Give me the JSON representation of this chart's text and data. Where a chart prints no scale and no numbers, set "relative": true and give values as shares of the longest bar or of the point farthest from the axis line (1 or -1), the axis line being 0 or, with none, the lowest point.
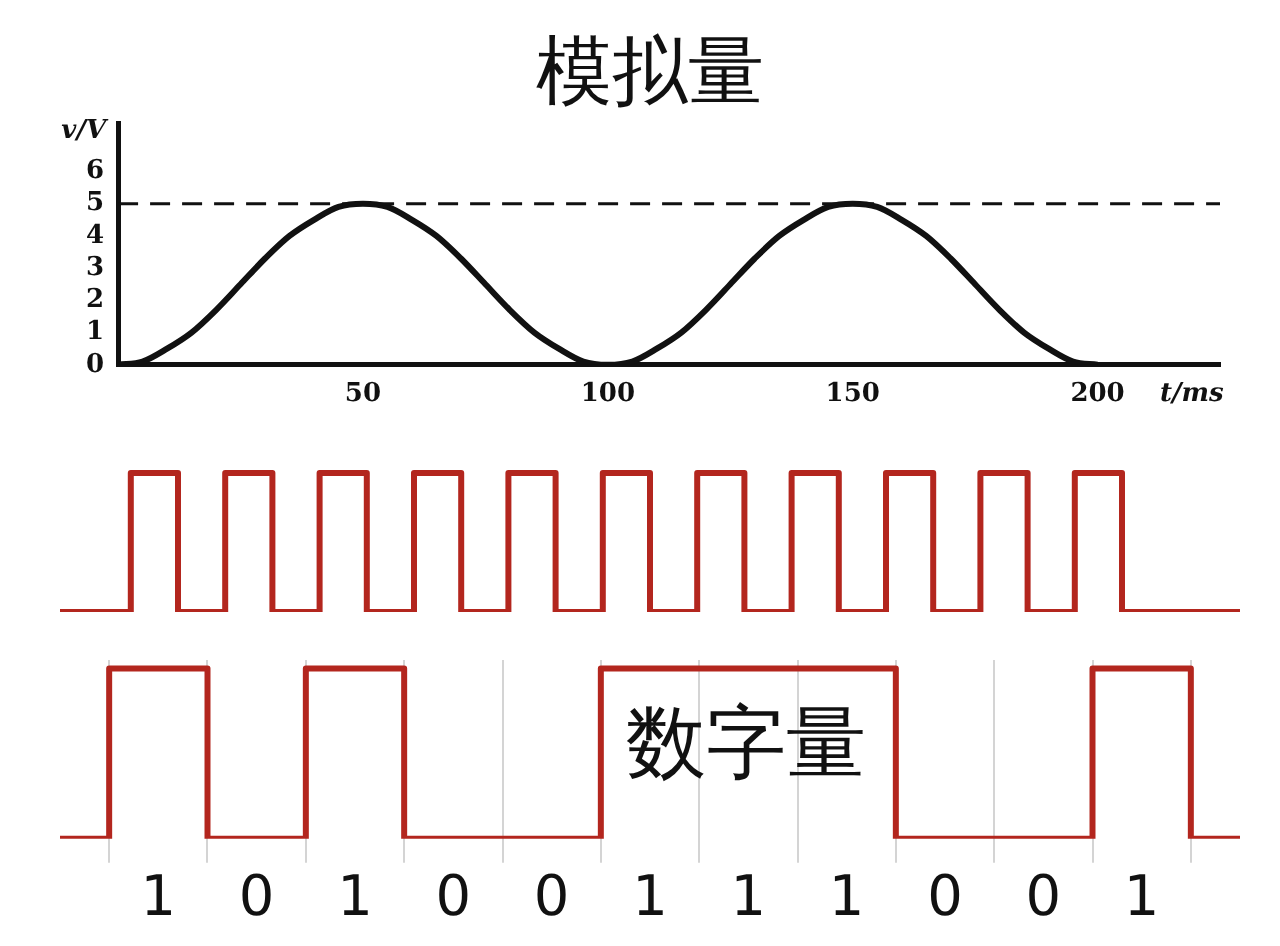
{
  "chart_data": [
    {
      "type": "line",
      "title": "模拟量",
      "xlabel": "t/ms",
      "ylabel": "v/V",
      "x": [
        0,
        5,
        10,
        15,
        20,
        25,
        30,
        35,
        40,
        45,
        50,
        55,
        60,
        65,
        70,
        75,
        80,
        85,
        90,
        95,
        100,
        105,
        110,
        115,
        120,
        125,
        130,
        135,
        140,
        145,
        150,
        155,
        160,
        165,
        170,
        175,
        180,
        185,
        190,
        195,
        200
      ],
      "series": [
        {
          "color": "#111111",
          "values": [
            0,
            0.1,
            0.5,
            1.0,
            1.7,
            2.5,
            3.3,
            4.0,
            4.5,
            4.9,
            5,
            4.9,
            4.5,
            4.0,
            3.3,
            2.5,
            1.7,
            1.0,
            0.5,
            0.1,
            0,
            0.1,
            0.5,
            1.0,
            1.7,
            2.5,
            3.3,
            4.0,
            4.5,
            4.9,
            5,
            4.9,
            4.5,
            4.0,
            3.3,
            2.5,
            1.7,
            1.0,
            0.5,
            0.1,
            0
          ]
        }
      ],
      "xlim": [
        0,
        225
      ],
      "ylim": [
        0,
        7.5
      ],
      "xticks": [
        50,
        100,
        150,
        200
      ],
      "yticks": [
        0,
        1,
        2,
        3,
        4,
        5,
        6
      ],
      "ref_lines": [
        {
          "axis": "y",
          "value": 5,
          "color": "#111111",
          "line_style": "dashed"
        }
      ],
      "marker": "none"
    },
    {
      "type": "step",
      "relative": true,
      "tick_labels": false,
      "categories": [
        null,
        null,
        null,
        null,
        null,
        null,
        null,
        null,
        null,
        null,
        null,
        null,
        null,
        null,
        null,
        null,
        null,
        null,
        null,
        null,
        null,
        null,
        null,
        null,
        null,
        null
      ],
      "series": [
        {
          "color": "#b3261e",
          "values": [
            0,
            0,
            1,
            0,
            1,
            0,
            1,
            0,
            1,
            0,
            1,
            0,
            1,
            0,
            1,
            0,
            1,
            0,
            1,
            0,
            1,
            0,
            1,
            0,
            0,
            0
          ]
        }
      ],
      "marker": "none"
    },
    {
      "type": "step",
      "relative": true,
      "tick_labels": "x",
      "grid": "x",
      "categories": [
        null,
        "1",
        "0",
        "1",
        "0",
        "0",
        "1",
        "1",
        "1",
        "0",
        "0",
        "1",
        null
      ],
      "series": [
        {
          "color": "#b3261e",
          "values": [
            0,
            1,
            0,
            1,
            0,
            0,
            1,
            1,
            1,
            0,
            0,
            1,
            0
          ]
        }
      ],
      "annotations": [
        "数字量"
      ],
      "marker": "none"
    }
  ]
}
